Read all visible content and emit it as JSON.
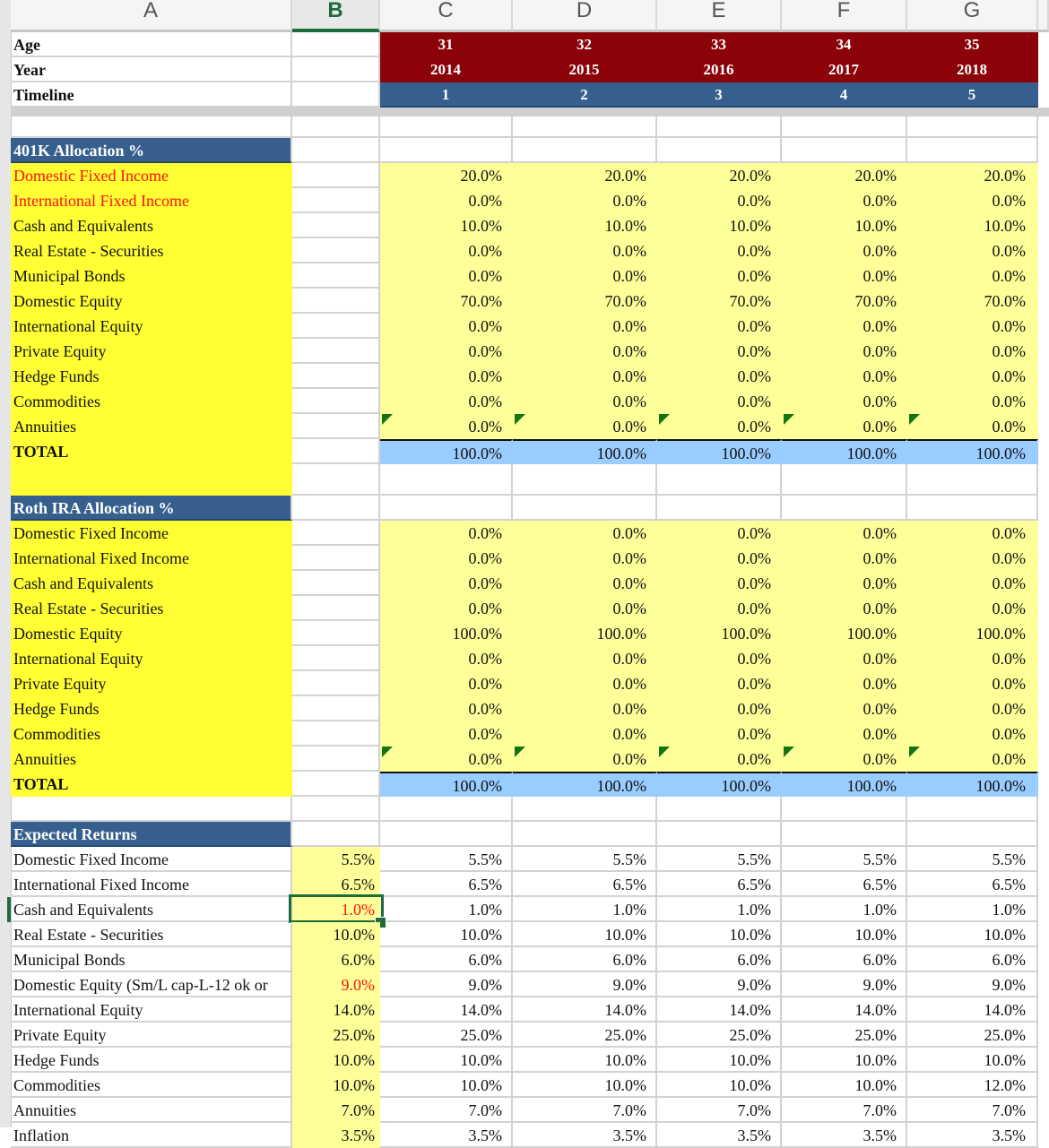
{
  "columns": [
    "A",
    "B",
    "C",
    "D",
    "E",
    "F",
    "G"
  ],
  "active_column": "B",
  "header_rows": {
    "age": {
      "label": "Age",
      "values": [
        "31",
        "32",
        "33",
        "34",
        "35"
      ]
    },
    "year": {
      "label": "Year",
      "values": [
        "2014",
        "2015",
        "2016",
        "2017",
        "2018"
      ]
    },
    "timeline": {
      "label": "Timeline",
      "values": [
        "1",
        "2",
        "3",
        "4",
        "5"
      ]
    }
  },
  "k401": {
    "title": "401K Allocation %",
    "rows": [
      {
        "label": "Domestic Fixed Income",
        "values": [
          "20.0%",
          "20.0%",
          "20.0%",
          "20.0%",
          "20.0%"
        ]
      },
      {
        "label": "International Fixed Income",
        "values": [
          "0.0%",
          "0.0%",
          "0.0%",
          "0.0%",
          "0.0%"
        ]
      },
      {
        "label": "Cash and Equivalents",
        "values": [
          "10.0%",
          "10.0%",
          "10.0%",
          "10.0%",
          "10.0%"
        ]
      },
      {
        "label": "Real Estate - Securities",
        "values": [
          "0.0%",
          "0.0%",
          "0.0%",
          "0.0%",
          "0.0%"
        ]
      },
      {
        "label": "Municipal Bonds",
        "values": [
          "0.0%",
          "0.0%",
          "0.0%",
          "0.0%",
          "0.0%"
        ]
      },
      {
        "label": "Domestic Equity",
        "values": [
          "70.0%",
          "70.0%",
          "70.0%",
          "70.0%",
          "70.0%"
        ]
      },
      {
        "label": "International Equity",
        "values": [
          "0.0%",
          "0.0%",
          "0.0%",
          "0.0%",
          "0.0%"
        ]
      },
      {
        "label": "Private Equity",
        "values": [
          "0.0%",
          "0.0%",
          "0.0%",
          "0.0%",
          "0.0%"
        ]
      },
      {
        "label": "Hedge Funds",
        "values": [
          "0.0%",
          "0.0%",
          "0.0%",
          "0.0%",
          "0.0%"
        ]
      },
      {
        "label": "Commodities",
        "values": [
          "0.0%",
          "0.0%",
          "0.0%",
          "0.0%",
          "0.0%"
        ]
      },
      {
        "label": "Annuities",
        "values": [
          "0.0%",
          "0.0%",
          "0.0%",
          "0.0%",
          "0.0%"
        ]
      }
    ],
    "total": {
      "label": "TOTAL",
      "values": [
        "100.0%",
        "100.0%",
        "100.0%",
        "100.0%",
        "100.0%"
      ]
    }
  },
  "roth": {
    "title": "Roth IRA Allocation %",
    "rows": [
      {
        "label": "Domestic Fixed Income",
        "values": [
          "0.0%",
          "0.0%",
          "0.0%",
          "0.0%",
          "0.0%"
        ]
      },
      {
        "label": "International Fixed Income",
        "values": [
          "0.0%",
          "0.0%",
          "0.0%",
          "0.0%",
          "0.0%"
        ]
      },
      {
        "label": "Cash and Equivalents",
        "values": [
          "0.0%",
          "0.0%",
          "0.0%",
          "0.0%",
          "0.0%"
        ]
      },
      {
        "label": "Real Estate - Securities",
        "values": [
          "0.0%",
          "0.0%",
          "0.0%",
          "0.0%",
          "0.0%"
        ]
      },
      {
        "label": "Domestic Equity",
        "values": [
          "100.0%",
          "100.0%",
          "100.0%",
          "100.0%",
          "100.0%"
        ]
      },
      {
        "label": "International Equity",
        "values": [
          "0.0%",
          "0.0%",
          "0.0%",
          "0.0%",
          "0.0%"
        ]
      },
      {
        "label": "Private Equity",
        "values": [
          "0.0%",
          "0.0%",
          "0.0%",
          "0.0%",
          "0.0%"
        ]
      },
      {
        "label": "Hedge Funds",
        "values": [
          "0.0%",
          "0.0%",
          "0.0%",
          "0.0%",
          "0.0%"
        ]
      },
      {
        "label": "Commodities",
        "values": [
          "0.0%",
          "0.0%",
          "0.0%",
          "0.0%",
          "0.0%"
        ]
      },
      {
        "label": "Annuities",
        "values": [
          "0.0%",
          "0.0%",
          "0.0%",
          "0.0%",
          "0.0%"
        ]
      }
    ],
    "total": {
      "label": "TOTAL",
      "values": [
        "100.0%",
        "100.0%",
        "100.0%",
        "100.0%",
        "100.0%"
      ]
    }
  },
  "returns": {
    "title": "Expected Returns",
    "rows": [
      {
        "label": "Domestic Fixed Income",
        "b": "5.5%",
        "values": [
          "5.5%",
          "5.5%",
          "5.5%",
          "5.5%",
          "5.5%"
        ]
      },
      {
        "label": "International Fixed Income",
        "b": "6.5%",
        "values": [
          "6.5%",
          "6.5%",
          "6.5%",
          "6.5%",
          "6.5%"
        ]
      },
      {
        "label": "Cash and Equivalents",
        "b": "1.0%",
        "values": [
          "1.0%",
          "1.0%",
          "1.0%",
          "1.0%",
          "1.0%"
        ]
      },
      {
        "label": "Real Estate - Securities",
        "b": "10.0%",
        "values": [
          "10.0%",
          "10.0%",
          "10.0%",
          "10.0%",
          "10.0%"
        ]
      },
      {
        "label": "Municipal Bonds",
        "b": "6.0%",
        "values": [
          "6.0%",
          "6.0%",
          "6.0%",
          "6.0%",
          "6.0%"
        ]
      },
      {
        "label": "Domestic Equity (Sm/L cap-L-12 ok or",
        "b": "9.0%",
        "values": [
          "9.0%",
          "9.0%",
          "9.0%",
          "9.0%",
          "9.0%"
        ]
      },
      {
        "label": "International Equity",
        "b": "14.0%",
        "values": [
          "14.0%",
          "14.0%",
          "14.0%",
          "14.0%",
          "14.0%"
        ]
      },
      {
        "label": "Private Equity",
        "b": "25.0%",
        "values": [
          "25.0%",
          "25.0%",
          "25.0%",
          "25.0%",
          "25.0%"
        ]
      },
      {
        "label": "Hedge Funds",
        "b": "10.0%",
        "values": [
          "10.0%",
          "10.0%",
          "10.0%",
          "10.0%",
          "10.0%"
        ]
      },
      {
        "label": "Commodities",
        "b": "10.0%",
        "values": [
          "10.0%",
          "10.0%",
          "10.0%",
          "10.0%",
          "12.0%"
        ]
      },
      {
        "label": "Annuities",
        "b": "7.0%",
        "values": [
          "7.0%",
          "7.0%",
          "7.0%",
          "7.0%",
          "7.0%"
        ]
      },
      {
        "label": "Inflation",
        "b": "3.5%",
        "values": [
          "3.5%",
          "3.5%",
          "3.5%",
          "3.5%",
          "3.5%"
        ]
      }
    ]
  },
  "selected_cell": {
    "column": "B",
    "row_label": "Cash and Equivalents",
    "value": "1.0%"
  },
  "colors": {
    "header_red": "#8b0309",
    "header_blue": "#365f8e",
    "label_yellow": "#ffff33",
    "input_yellow": "#ffff99",
    "total_blue": "#99ccff",
    "selection_green": "#1d6b3a",
    "red_text": "#ff1010"
  }
}
